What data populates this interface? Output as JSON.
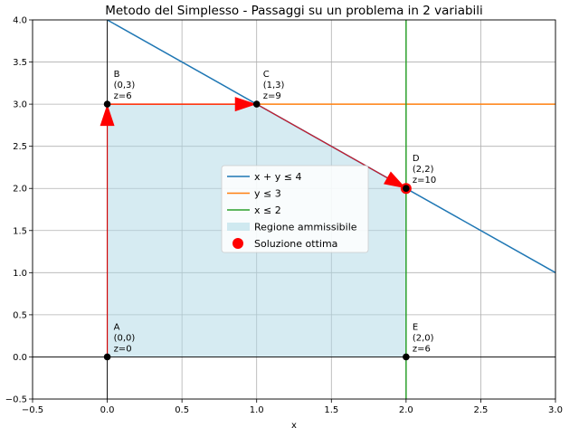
{
  "chart_data": {
    "type": "line",
    "title": "Metodo del Simplesso - Passaggi su un problema in 2 variabili",
    "xlabel": "x",
    "ylabel": "",
    "xlim": [
      -0.5,
      3.0
    ],
    "ylim": [
      -0.5,
      4.0
    ],
    "xticks": [
      "−0.5",
      "0.0",
      "0.5",
      "1.0",
      "1.5",
      "2.0",
      "2.5",
      "3.0"
    ],
    "yticks": [
      "−0.5",
      "0.0",
      "0.5",
      "1.0",
      "1.5",
      "2.0",
      "2.5",
      "3.0",
      "3.5",
      "4.0"
    ],
    "grid": true,
    "legend_position": "center",
    "series": [
      {
        "name": "x + y ≤ 4",
        "color": "#1f77b4",
        "x": [
          0,
          3
        ],
        "y": [
          4,
          1
        ]
      },
      {
        "name": "y ≤ 3",
        "color": "#ff7f0e",
        "x": [
          0,
          3
        ],
        "y": [
          3,
          3
        ]
      },
      {
        "name": "x ≤ 2",
        "color": "#2ca02c",
        "x": [
          2,
          2
        ],
        "y": [
          -0.5,
          4
        ]
      }
    ],
    "feasible_region": {
      "name": "Regione ammissibile",
      "color": "#add8e6",
      "polygon": [
        [
          0,
          0
        ],
        [
          0,
          3
        ],
        [
          1,
          3
        ],
        [
          2,
          2
        ],
        [
          2,
          0
        ]
      ]
    },
    "points": [
      {
        "id": "A",
        "x": 0,
        "y": 0,
        "coord": "(0,0)",
        "z": "z=0"
      },
      {
        "id": "B",
        "x": 0,
        "y": 3,
        "coord": "(0,3)",
        "z": "z=6"
      },
      {
        "id": "C",
        "x": 1,
        "y": 3,
        "coord": "(1,3)",
        "z": "z=9"
      },
      {
        "id": "D",
        "x": 2,
        "y": 2,
        "coord": "(2,2)",
        "z": "z=10"
      },
      {
        "id": "E",
        "x": 2,
        "y": 0,
        "coord": "(2,0)",
        "z": "z=6"
      }
    ],
    "optimum": {
      "name": "Soluzione ottima",
      "x": 2,
      "y": 2,
      "color": "#ff0000"
    },
    "path": [
      [
        0,
        0
      ],
      [
        0,
        3
      ],
      [
        1,
        3
      ],
      [
        2,
        2
      ]
    ],
    "path_color": "#ff0000"
  }
}
